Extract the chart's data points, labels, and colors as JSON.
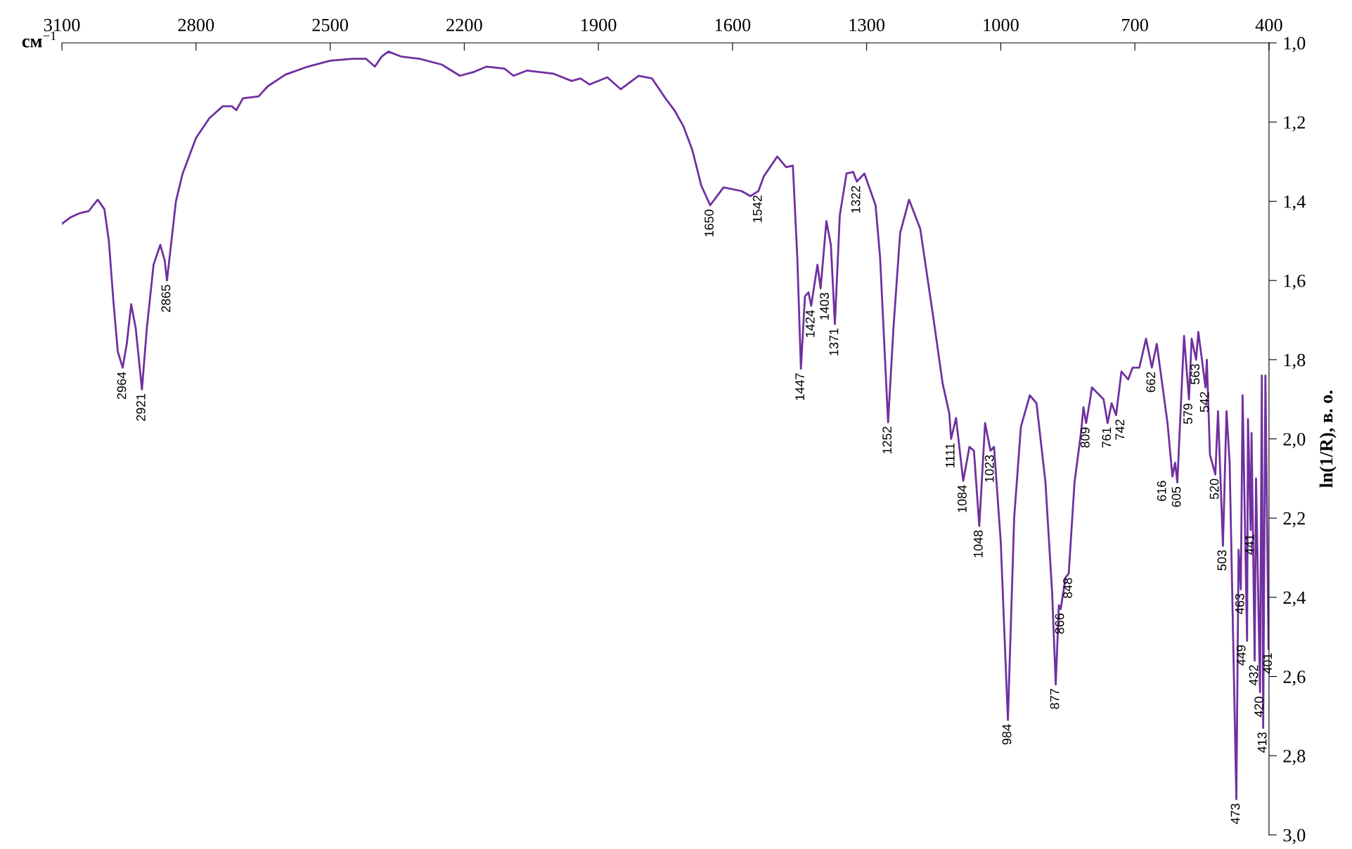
{
  "chart_data": {
    "type": "line",
    "xlabel": "см$^{−1}$",
    "ylabel": "ln(1/R), в. о.",
    "xlim": [
      3100,
      400
    ],
    "xticks": [
      3100,
      2800,
      2500,
      2200,
      1900,
      1600,
      1300,
      1000,
      700,
      400
    ],
    "ylim": [
      3.0,
      1.0
    ],
    "yticks": [
      {
        "value": 1.0,
        "label": "1,0"
      },
      {
        "value": 1.2,
        "label": "1,2"
      },
      {
        "value": 1.4,
        "label": "1,4"
      },
      {
        "value": 1.6,
        "label": "1,6"
      },
      {
        "value": 1.8,
        "label": "1,8"
      },
      {
        "value": 2.0,
        "label": "2,0"
      },
      {
        "value": 2.2,
        "label": "2,2"
      },
      {
        "value": 2.4,
        "label": "2,4"
      },
      {
        "value": 2.6,
        "label": "2,6"
      },
      {
        "value": 2.8,
        "label": "2,8"
      },
      {
        "value": 3.0,
        "label": "3,0"
      }
    ],
    "grid": false,
    "legend": false,
    "series": [
      {
        "color": "#7030a0",
        "x": [
          3100,
          3080,
          3060,
          3040,
          3030,
          3020,
          3005,
          2995,
          2985,
          2975,
          2964,
          2955,
          2945,
          2935,
          2921,
          2910,
          2895,
          2880,
          2870,
          2865,
          2855,
          2845,
          2830,
          2800,
          2770,
          2740,
          2720,
          2710,
          2695,
          2660,
          2640,
          2600,
          2550,
          2500,
          2450,
          2420,
          2400,
          2385,
          2370,
          2340,
          2300,
          2250,
          2210,
          2180,
          2150,
          2110,
          2090,
          2060,
          2000,
          1960,
          1940,
          1920,
          1880,
          1850,
          1810,
          1780,
          1750,
          1730,
          1710,
          1690,
          1670,
          1650,
          1620,
          1580,
          1560,
          1542,
          1530,
          1500,
          1480,
          1465,
          1455,
          1447,
          1438,
          1430,
          1424,
          1410,
          1403,
          1390,
          1380,
          1371,
          1360,
          1345,
          1330,
          1322,
          1305,
          1280,
          1270,
          1252,
          1240,
          1225,
          1205,
          1180,
          1150,
          1130,
          1115,
          1111,
          1100,
          1084,
          1070,
          1060,
          1048,
          1035,
          1023,
          1015,
          1000,
          984,
          970,
          955,
          935,
          920,
          900,
          885,
          877,
          870,
          866,
          855,
          848,
          835,
          820,
          815,
          809,
          800,
          796,
          770,
          761,
          752,
          742,
          730,
          715,
          705,
          690,
          675,
          662,
          651,
          627,
          616,
          610,
          605,
          590,
          579,
          573,
          563,
          558,
          542,
          539,
          532,
          520,
          514,
          503,
          495,
          488,
          473,
          468,
          463,
          459,
          449,
          447,
          441,
          439,
          432,
          429,
          420,
          416,
          413,
          408,
          401
        ],
        "values": [
          1.457,
          1.44,
          1.43,
          1.425,
          1.41,
          1.396,
          1.42,
          1.5,
          1.65,
          1.78,
          1.82,
          1.76,
          1.66,
          1.72,
          1.875,
          1.72,
          1.56,
          1.51,
          1.55,
          1.6,
          1.5,
          1.4,
          1.33,
          1.24,
          1.19,
          1.16,
          1.16,
          1.17,
          1.14,
          1.135,
          1.11,
          1.08,
          1.06,
          1.045,
          1.04,
          1.04,
          1.06,
          1.035,
          1.022,
          1.035,
          1.04,
          1.055,
          1.083,
          1.074,
          1.06,
          1.065,
          1.083,
          1.07,
          1.078,
          1.096,
          1.09,
          1.105,
          1.087,
          1.117,
          1.083,
          1.09,
          1.14,
          1.17,
          1.21,
          1.27,
          1.36,
          1.41,
          1.365,
          1.374,
          1.387,
          1.374,
          1.337,
          1.287,
          1.314,
          1.31,
          1.544,
          1.823,
          1.64,
          1.63,
          1.664,
          1.56,
          1.62,
          1.45,
          1.51,
          1.71,
          1.435,
          1.33,
          1.326,
          1.35,
          1.33,
          1.41,
          1.54,
          1.958,
          1.72,
          1.48,
          1.396,
          1.47,
          1.7,
          1.86,
          1.936,
          2.0,
          1.947,
          2.106,
          2.02,
          2.03,
          2.22,
          1.96,
          2.03,
          2.02,
          2.26,
          2.71,
          2.2,
          1.97,
          1.89,
          1.91,
          2.11,
          2.39,
          2.62,
          2.42,
          2.43,
          2.35,
          2.34,
          2.11,
          1.98,
          1.92,
          1.96,
          1.9,
          1.87,
          1.9,
          1.96,
          1.91,
          1.94,
          1.83,
          1.85,
          1.82,
          1.82,
          1.747,
          1.82,
          1.76,
          1.96,
          2.095,
          2.06,
          2.11,
          1.74,
          1.9,
          1.747,
          1.8,
          1.73,
          1.87,
          1.8,
          2.04,
          2.09,
          1.93,
          2.27,
          1.93,
          2.06,
          2.91,
          2.28,
          2.38,
          1.89,
          2.51,
          1.95,
          2.23,
          1.985,
          2.56,
          2.1,
          2.64,
          1.84,
          2.73,
          1.84,
          2.53
        ]
      }
    ],
    "annotations": [
      {
        "text": "2964",
        "x": 2964,
        "y": 1.82
      },
      {
        "text": "2921",
        "x": 2921,
        "y": 1.875
      },
      {
        "text": "2865",
        "x": 2865,
        "y": 1.6
      },
      {
        "text": "1650",
        "x": 1650,
        "y": 1.41
      },
      {
        "text": "1542",
        "x": 1542,
        "y": 1.374
      },
      {
        "text": "1447",
        "x": 1447,
        "y": 1.823
      },
      {
        "text": "1424",
        "x": 1424,
        "y": 1.664
      },
      {
        "text": "1403",
        "x": 1403,
        "y": 1.62
      },
      {
        "text": "1371",
        "x": 1371,
        "y": 1.71
      },
      {
        "text": "1322",
        "x": 1322,
        "y": 1.35
      },
      {
        "text": "1252",
        "x": 1252,
        "y": 1.958
      },
      {
        "text": "1111",
        "x": 1111,
        "y": 2.0
      },
      {
        "text": "1084",
        "x": 1084,
        "y": 2.106
      },
      {
        "text": "1048",
        "x": 1048,
        "y": 2.22
      },
      {
        "text": "1023",
        "x": 1023,
        "y": 2.03
      },
      {
        "text": "984",
        "x": 984,
        "y": 2.71
      },
      {
        "text": "877",
        "x": 877,
        "y": 2.62
      },
      {
        "text": "866",
        "x": 866,
        "y": 2.43
      },
      {
        "text": "848",
        "x": 848,
        "y": 2.34
      },
      {
        "text": "809",
        "x": 809,
        "y": 1.96
      },
      {
        "text": "761",
        "x": 761,
        "y": 1.96
      },
      {
        "text": "742",
        "x": 742,
        "y": 1.94
      },
      {
        "text": "662",
        "x": 662,
        "y": 1.82
      },
      {
        "text": "616",
        "x": 616,
        "y": 2.095
      },
      {
        "text": "605",
        "x": 605,
        "y": 2.11
      },
      {
        "text": "579",
        "x": 579,
        "y": 1.9
      },
      {
        "text": "563",
        "x": 563,
        "y": 1.8
      },
      {
        "text": "542",
        "x": 542,
        "y": 1.87
      },
      {
        "text": "520",
        "x": 520,
        "y": 2.09
      },
      {
        "text": "503",
        "x": 503,
        "y": 2.27
      },
      {
        "text": "473",
        "x": 473,
        "y": 2.91
      },
      {
        "text": "463",
        "x": 463,
        "y": 2.38
      },
      {
        "text": "449",
        "x": 449,
        "y": 2.51
      },
      {
        "text": "441",
        "x": 441,
        "y": 2.23
      },
      {
        "text": "432",
        "x": 432,
        "y": 2.56
      },
      {
        "text": "420",
        "x": 420,
        "y": 2.64
      },
      {
        "text": "413",
        "x": 413,
        "y": 2.73
      },
      {
        "text": "401",
        "x": 401,
        "y": 2.53
      }
    ]
  }
}
